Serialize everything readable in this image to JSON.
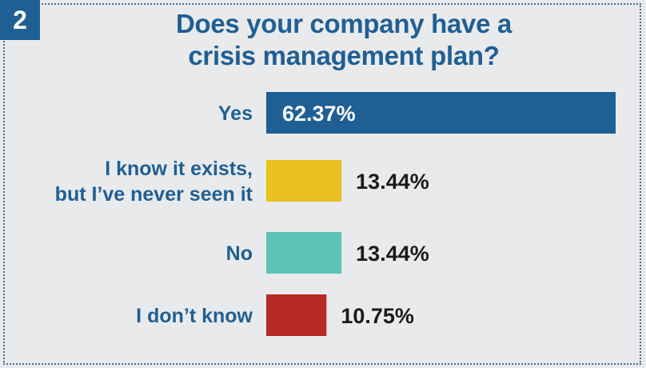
{
  "badge": {
    "number": "2"
  },
  "chart_data": {
    "type": "bar",
    "orientation": "horizontal",
    "title_lines": [
      "Does your company have a",
      "crisis management plan?"
    ],
    "categories": [
      [
        "Yes"
      ],
      [
        "I know it exists,",
        "but I’ve never seen it"
      ],
      [
        "No"
      ],
      [
        "I don’t know"
      ]
    ],
    "values": [
      62.37,
      13.44,
      13.44,
      10.75
    ],
    "value_labels": [
      "62.37%",
      "13.44%",
      "13.44%",
      "10.75%"
    ],
    "colors": [
      "#1f5f94",
      "#e8c01f",
      "#5cc4b6",
      "#b52a24"
    ],
    "xlim": [
      0,
      62.37
    ],
    "grid": false,
    "legend": "none"
  }
}
